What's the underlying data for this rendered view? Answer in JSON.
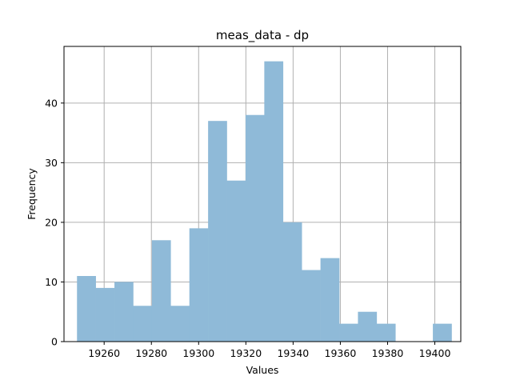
{
  "chart_data": {
    "type": "bar",
    "title": "meas_data - dp",
    "xlabel": "Values",
    "ylabel": "Frequency",
    "bar_color": "#8fbad8",
    "grid": true,
    "xlim": [
      19243,
      19411
    ],
    "ylim": [
      0,
      49.5
    ],
    "bin_edges": [
      19248.5,
      19256.43,
      19264.36,
      19272.29,
      19280.22,
      19288.15,
      19296.08,
      19304.01,
      19311.94,
      19319.87,
      19327.8,
      19335.73,
      19343.66,
      19351.59,
      19359.52,
      19367.45,
      19375.38,
      19383.31,
      19391.24,
      19399.17,
      19407.1
    ],
    "values": [
      11,
      9,
      10,
      6,
      17,
      6,
      19,
      37,
      27,
      38,
      47,
      20,
      12,
      14,
      3,
      5,
      3,
      0,
      0,
      3
    ],
    "xticks": [
      19260,
      19280,
      19300,
      19320,
      19340,
      19360,
      19380,
      19400
    ],
    "yticks": [
      0,
      10,
      20,
      30,
      40
    ]
  }
}
